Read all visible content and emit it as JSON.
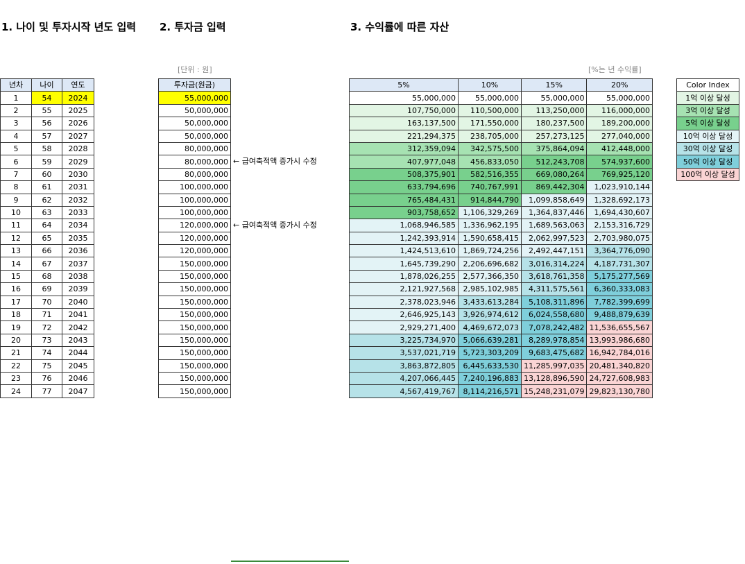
{
  "headings": {
    "section1": "1. 나이 및 투자시작 년도 입력",
    "section2": "2. 투자금 입력",
    "section3": "3. 수익률에 따른 자산"
  },
  "notes": {
    "unit": "[단위 : 원]",
    "rate": "[%는 년 수익률]"
  },
  "age_table": {
    "headers": [
      "년차",
      "나이",
      "연도"
    ],
    "rows": [
      [
        "1",
        "54",
        "2024"
      ],
      [
        "2",
        "55",
        "2025"
      ],
      [
        "3",
        "56",
        "2026"
      ],
      [
        "4",
        "57",
        "2027"
      ],
      [
        "5",
        "58",
        "2028"
      ],
      [
        "6",
        "59",
        "2029"
      ],
      [
        "7",
        "60",
        "2030"
      ],
      [
        "8",
        "61",
        "2031"
      ],
      [
        "9",
        "62",
        "2032"
      ],
      [
        "10",
        "63",
        "2033"
      ],
      [
        "11",
        "64",
        "2034"
      ],
      [
        "12",
        "65",
        "2035"
      ],
      [
        "13",
        "66",
        "2036"
      ],
      [
        "14",
        "67",
        "2037"
      ],
      [
        "15",
        "68",
        "2038"
      ],
      [
        "16",
        "69",
        "2039"
      ],
      [
        "17",
        "70",
        "2040"
      ],
      [
        "18",
        "71",
        "2041"
      ],
      [
        "19",
        "72",
        "2042"
      ],
      [
        "20",
        "73",
        "2043"
      ],
      [
        "21",
        "74",
        "2044"
      ],
      [
        "22",
        "75",
        "2045"
      ],
      [
        "23",
        "76",
        "2046"
      ],
      [
        "24",
        "77",
        "2047"
      ]
    ]
  },
  "investment_table": {
    "header": "투자금(원금)",
    "values": [
      "55,000,000",
      "50,000,000",
      "50,000,000",
      "50,000,000",
      "80,000,000",
      "80,000,000",
      "80,000,000",
      "100,000,000",
      "100,000,000",
      "100,000,000",
      "120,000,000",
      "120,000,000",
      "120,000,000",
      "150,000,000",
      "150,000,000",
      "150,000,000",
      "150,000,000",
      "150,000,000",
      "150,000,000",
      "150,000,000",
      "150,000,000",
      "150,000,000",
      "150,000,000",
      "150,000,000"
    ]
  },
  "annotations": [
    {
      "row": 6,
      "text": "← 급여축적액 증가시 수정"
    },
    {
      "row": 11,
      "text": "← 급여축적액 증가시 수정"
    }
  ],
  "returns_table": {
    "headers": [
      "5%",
      "10%",
      "15%",
      "20%"
    ],
    "rows": [
      [
        "55,000,000",
        "55,000,000",
        "55,000,000",
        "55,000,000"
      ],
      [
        "107,750,000",
        "110,500,000",
        "113,250,000",
        "116,000,000"
      ],
      [
        "163,137,500",
        "171,550,000",
        "180,237,500",
        "189,200,000"
      ],
      [
        "221,294,375",
        "238,705,000",
        "257,273,125",
        "277,040,000"
      ],
      [
        "312,359,094",
        "342,575,500",
        "375,864,094",
        "412,448,000"
      ],
      [
        "407,977,048",
        "456,833,050",
        "512,243,708",
        "574,937,600"
      ],
      [
        "508,375,901",
        "582,516,355",
        "669,080,264",
        "769,925,120"
      ],
      [
        "633,794,696",
        "740,767,991",
        "869,442,304",
        "1,023,910,144"
      ],
      [
        "765,484,431",
        "914,844,790",
        "1,099,858,649",
        "1,328,692,173"
      ],
      [
        "903,758,652",
        "1,106,329,269",
        "1,364,837,446",
        "1,694,430,607"
      ],
      [
        "1,068,946,585",
        "1,336,962,195",
        "1,689,563,063",
        "2,153,316,729"
      ],
      [
        "1,242,393,914",
        "1,590,658,415",
        "2,062,997,523",
        "2,703,980,075"
      ],
      [
        "1,424,513,610",
        "1,869,724,256",
        "2,492,447,151",
        "3,364,776,090"
      ],
      [
        "1,645,739,290",
        "2,206,696,682",
        "3,016,314,224",
        "4,187,731,307"
      ],
      [
        "1,878,026,255",
        "2,577,366,350",
        "3,618,761,358",
        "5,175,277,569"
      ],
      [
        "2,121,927,568",
        "2,985,102,985",
        "4,311,575,561",
        "6,360,333,083"
      ],
      [
        "2,378,023,946",
        "3,433,613,284",
        "5,108,311,896",
        "7,782,399,699"
      ],
      [
        "2,646,925,143",
        "3,926,974,612",
        "6,024,558,680",
        "9,488,879,639"
      ],
      [
        "2,929,271,400",
        "4,469,672,073",
        "7,078,242,482",
        "11,536,655,567"
      ],
      [
        "3,225,734,970",
        "5,066,639,281",
        "8,289,978,854",
        "13,993,986,680"
      ],
      [
        "3,537,021,719",
        "5,723,303,209",
        "9,683,475,682",
        "16,942,784,016"
      ],
      [
        "3,863,872,805",
        "6,445,633,530",
        "11,285,997,035",
        "20,481,340,820"
      ],
      [
        "4,207,066,445",
        "7,240,196,883",
        "13,128,896,590",
        "24,727,608,983"
      ],
      [
        "4,567,419,767",
        "8,114,216,571",
        "15,248,231,079",
        "29,823,130,780"
      ]
    ]
  },
  "legend": {
    "header": "Color Index",
    "items": [
      {
        "label": "1억 이상 달성",
        "color": "#e2f5e4"
      },
      {
        "label": "3억 이상 달성",
        "color": "#a6e2b2"
      },
      {
        "label": "5억 이상 달성",
        "color": "#78d08d"
      },
      {
        "label": "10억 이상 달성",
        "color": "#e3f3f6"
      },
      {
        "label": "30억 이상 달성",
        "color": "#b6e2e8"
      },
      {
        "label": "50억 이상 달성",
        "color": "#7fcfdb"
      },
      {
        "label": "100억 이상 달성",
        "color": "#fad4d4"
      }
    ]
  },
  "colors": {
    "header_bg": "#dde8f6",
    "highlight_input": "#ffff00"
  }
}
